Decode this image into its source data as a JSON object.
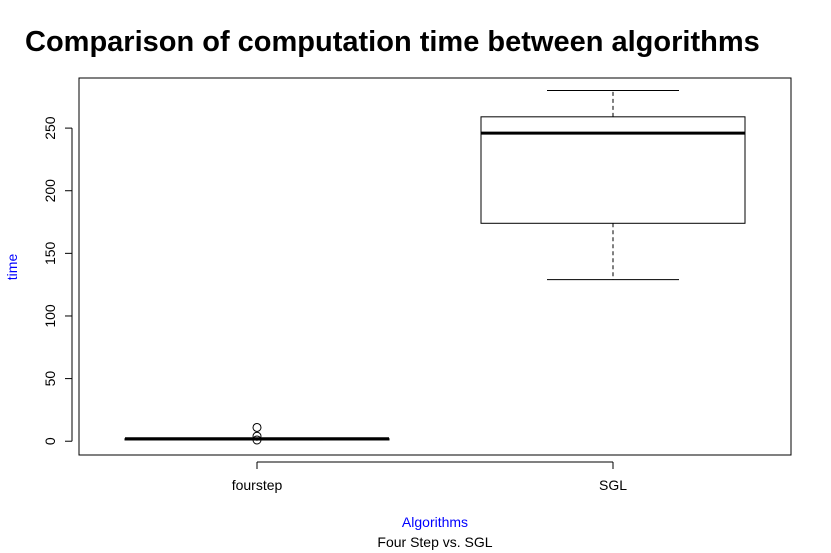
{
  "chart_data": {
    "type": "boxplot",
    "title": "Comparison of computation time between algorithms",
    "subtitle": "Four Step vs. SGL",
    "xlabel": "Algorithms",
    "ylabel": "time",
    "label_color": "#0000ff",
    "ylim": [
      -11,
      290
    ],
    "yticks": [
      0,
      50,
      100,
      150,
      200,
      250
    ],
    "ytick_labels": [
      "0",
      "50",
      "100",
      "150",
      "200",
      "250"
    ],
    "categories": [
      "fourstep",
      "SGL"
    ],
    "boxes": [
      {
        "name": "fourstep",
        "min": 1,
        "q1": 1,
        "median": 2,
        "q3": 2,
        "max": 2,
        "outliers": [
          11,
          4,
          1
        ]
      },
      {
        "name": "SGL",
        "min": 129,
        "q1": 174,
        "median": 246,
        "q3": 259,
        "max": 280,
        "outliers": []
      }
    ],
    "grid": false
  }
}
